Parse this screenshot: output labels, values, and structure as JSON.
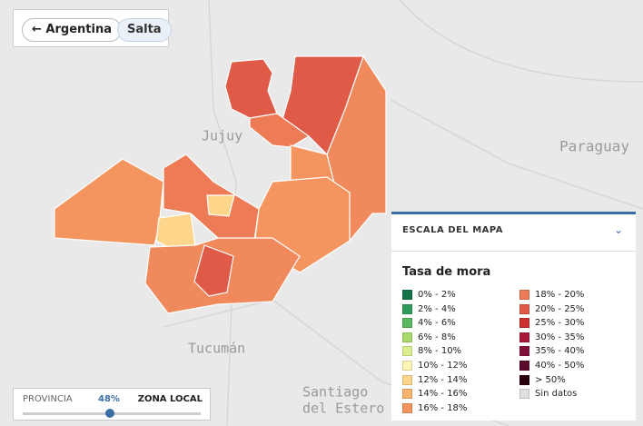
{
  "breadcrumb": {
    "back": "Argentina",
    "current": "Salta"
  },
  "map_labels": {
    "north_west": "Jujuy",
    "east": "Paraguay",
    "south": "Tucumán",
    "south_east": [
      "Santiago",
      "del Estero"
    ]
  },
  "legend": {
    "header": "ESCALA DEL MAPA",
    "title": "Tasa de mora",
    "items": [
      {
        "label": "0% - 2%",
        "color": "#17734a"
      },
      {
        "label": "2% - 4%",
        "color": "#2f9a5c"
      },
      {
        "label": "4% - 6%",
        "color": "#5cb860"
      },
      {
        "label": "6% - 8%",
        "color": "#a9d86b"
      },
      {
        "label": "8% - 10%",
        "color": "#dbee8f"
      },
      {
        "label": "10% - 12%",
        "color": "#fff6b3"
      },
      {
        "label": "12% - 14%",
        "color": "#fdd68c"
      },
      {
        "label": "14% - 16%",
        "color": "#f9b36c"
      },
      {
        "label": "16% - 18%",
        "color": "#f4955f"
      },
      {
        "label": "18% - 20%",
        "color": "#ec7b56"
      },
      {
        "label": "20% - 25%",
        "color": "#e05a48"
      },
      {
        "label": "25% - 30%",
        "color": "#cc3030"
      },
      {
        "label": "30% - 35%",
        "color": "#a8183a"
      },
      {
        "label": "35% - 40%",
        "color": "#80103a"
      },
      {
        "label": "40% - 50%",
        "color": "#5a0a2a"
      },
      {
        "label": "> 50%",
        "color": "#2a0010"
      },
      {
        "label": "Sin datos",
        "color": "#e0e0e0"
      }
    ]
  },
  "slider": {
    "left": "PROVINCIA",
    "value": "48%",
    "right": "ZONA LOCAL"
  }
}
